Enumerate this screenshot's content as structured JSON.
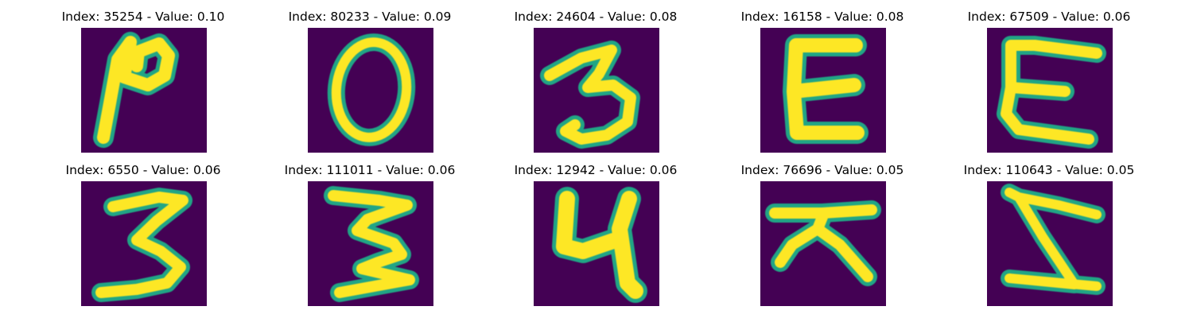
{
  "colors": {
    "background": "#440154",
    "stroke_core": "#fde725",
    "stroke_edge": "#21a585"
  },
  "panels": [
    {
      "title": "Index: 35254 - Value: 0.10"
    },
    {
      "title": "Index: 80233 - Value: 0.09"
    },
    {
      "title": "Index: 24604 - Value: 0.08"
    },
    {
      "title": "Index: 16158 - Value: 0.08"
    },
    {
      "title": "Index: 67509 - Value: 0.06"
    },
    {
      "title": "Index: 6550 - Value: 0.06"
    },
    {
      "title": "Index: 111011 - Value: 0.06"
    },
    {
      "title": "Index: 12942 - Value: 0.06"
    },
    {
      "title": "Index: 76696 - Value: 0.05"
    },
    {
      "title": "Index: 110643 - Value: 0.05"
    }
  ]
}
